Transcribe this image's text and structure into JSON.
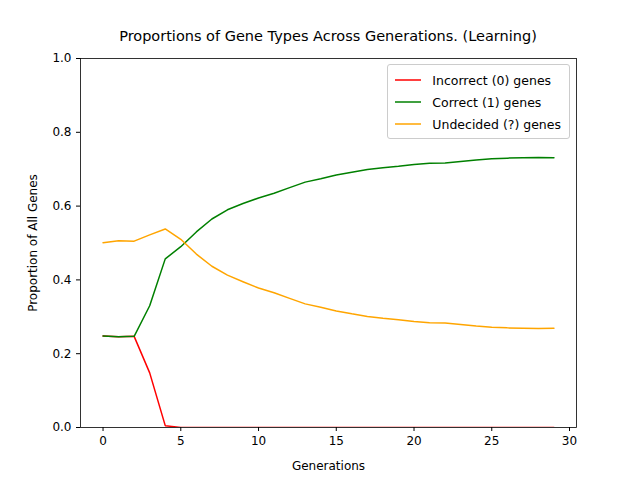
{
  "chart_data": {
    "type": "line",
    "title": "Proportions of Gene Types Across Generations. (Learning)",
    "x_label": "Generations",
    "y_label": "Proportion of All Genes",
    "x": [
      0,
      1,
      2,
      3,
      4,
      5,
      6,
      7,
      8,
      9,
      10,
      11,
      12,
      13,
      14,
      15,
      16,
      17,
      18,
      19,
      20,
      21,
      22,
      23,
      24,
      25,
      26,
      27,
      28,
      29
    ],
    "series": [
      {
        "name": "Incorrect (0) genes",
        "color": "#ff0000",
        "values": [
          0.248,
          0.246,
          0.247,
          0.148,
          0.005,
          0.0,
          0.0,
          0.0,
          0.0,
          0.0,
          0.0,
          0.0,
          0.0,
          0.0,
          0.0,
          0.0,
          0.0,
          0.0,
          0.0,
          0.0,
          0.0,
          0.0,
          0.0,
          0.0,
          0.0,
          0.0,
          0.0,
          0.0,
          0.0,
          0.0
        ]
      },
      {
        "name": "Correct (1) genes",
        "color": "#008000",
        "values": [
          0.248,
          0.246,
          0.247,
          0.33,
          0.457,
          0.49,
          0.53,
          0.565,
          0.59,
          0.607,
          0.622,
          0.635,
          0.65,
          0.665,
          0.674,
          0.684,
          0.692,
          0.699,
          0.704,
          0.708,
          0.713,
          0.716,
          0.717,
          0.721,
          0.725,
          0.728,
          0.73,
          0.731,
          0.732,
          0.731
        ]
      },
      {
        "name": "Undecided (?) genes",
        "color": "#ffa500",
        "values": [
          0.501,
          0.506,
          0.505,
          0.522,
          0.538,
          0.51,
          0.47,
          0.437,
          0.413,
          0.395,
          0.378,
          0.365,
          0.35,
          0.335,
          0.326,
          0.316,
          0.308,
          0.301,
          0.296,
          0.292,
          0.287,
          0.284,
          0.283,
          0.279,
          0.275,
          0.272,
          0.27,
          0.269,
          0.268,
          0.269
        ]
      }
    ],
    "xlim": [
      -1.45,
      30.45
    ],
    "xticks": [
      0,
      5,
      10,
      15,
      20,
      25,
      30
    ],
    "ylim": [
      0,
      1
    ],
    "yticks": [
      {
        "value": 0,
        "label": "0.0"
      },
      0.2,
      0.4,
      0.6,
      0.8,
      {
        "value": 1,
        "label": "1.0"
      }
    ],
    "legend": "upper right",
    "grid": false
  }
}
